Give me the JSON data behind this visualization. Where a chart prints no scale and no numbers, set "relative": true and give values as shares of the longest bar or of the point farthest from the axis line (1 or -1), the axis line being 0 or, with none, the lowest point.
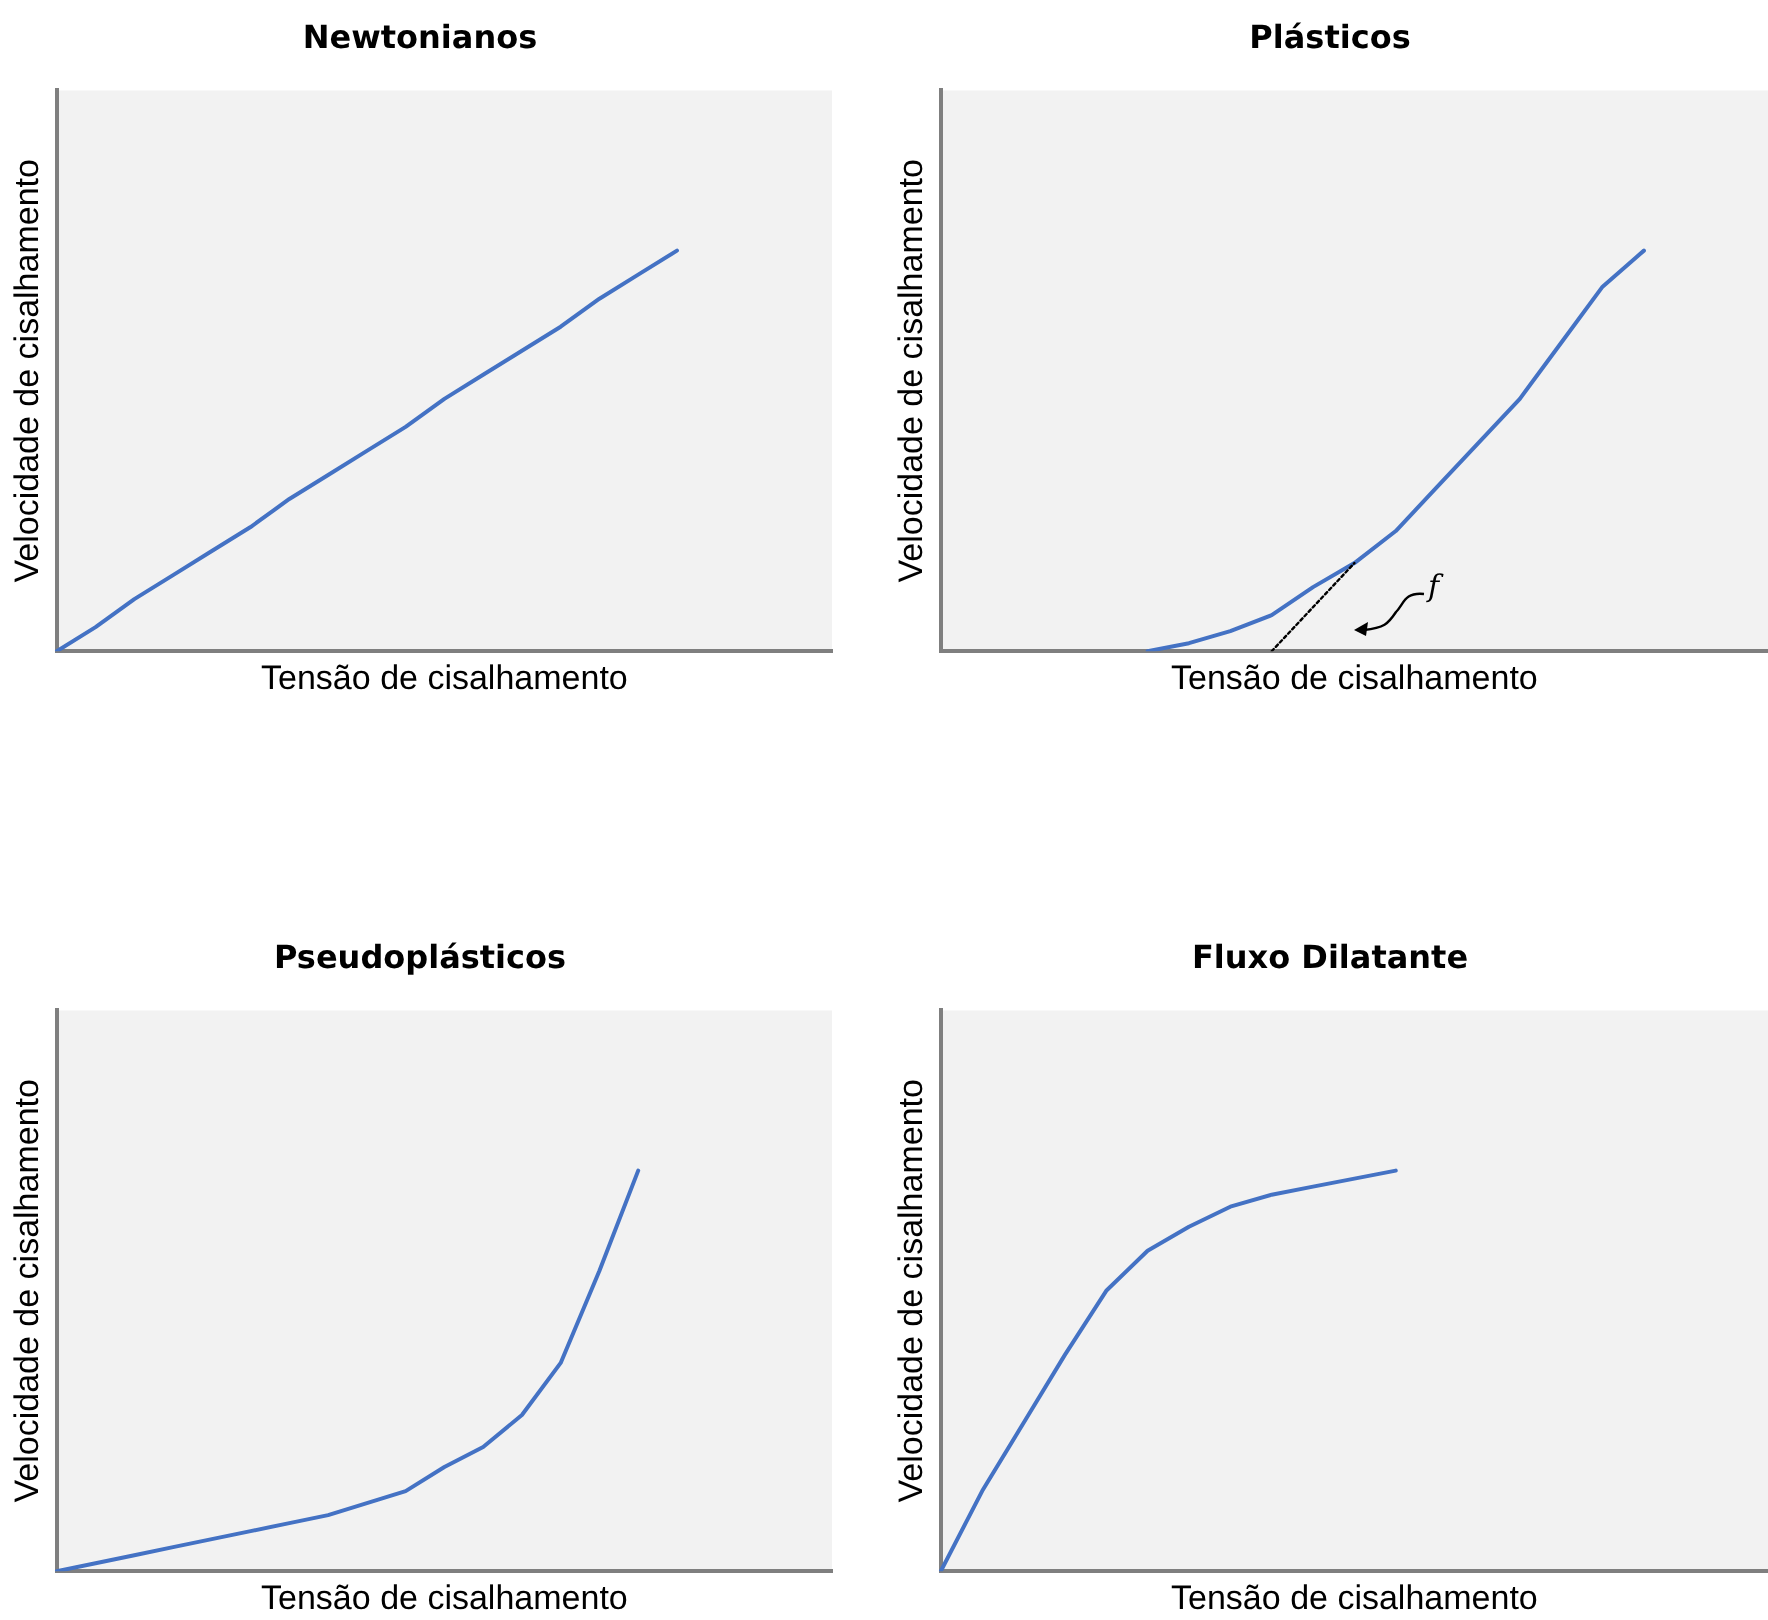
{
  "chart_data": [
    {
      "type": "line",
      "title": "Newtonianos",
      "xlabel": "Tensão de cisalhamento",
      "ylabel": "Velocidade de cisalhamento",
      "relative": true,
      "tick_labels": false,
      "categories": [
        null,
        null,
        null,
        null,
        null,
        null,
        null,
        null,
        null,
        null,
        null,
        null,
        null,
        null,
        null,
        null,
        null,
        null,
        null,
        null,
        null
      ],
      "series": [
        {
          "color": "#4472c4",
          "values": [
            0,
            0.06,
            0.13,
            0.19,
            0.25,
            0.31,
            0.38,
            0.44,
            0.5,
            0.56,
            0.63,
            0.69,
            0.75,
            0.81,
            0.88,
            0.94,
            1,
            null,
            null,
            null,
            null
          ]
        }
      ]
    },
    {
      "type": "line",
      "title": "Plásticos",
      "xlabel": "Tensão de cisalhamento",
      "ylabel": "Velocidade de cisalhamento",
      "relative": true,
      "tick_labels": false,
      "annotations": [
        "f"
      ],
      "categories": [
        null,
        null,
        null,
        null,
        null,
        null,
        null,
        null,
        null,
        null,
        null,
        null,
        null,
        null,
        null,
        null,
        null,
        null,
        null,
        null,
        null
      ],
      "series": [
        {
          "color": "#4472c4",
          "values": [
            null,
            null,
            null,
            null,
            null,
            0,
            0.02,
            0.05,
            0.09,
            0.16,
            0.22,
            0.3,
            0.41,
            0.52,
            0.63,
            0.77,
            0.91,
            1,
            null,
            null,
            null
          ]
        },
        {
          "color": "#000000",
          "line_style": "dotted",
          "values": [
            null,
            null,
            null,
            null,
            null,
            null,
            null,
            null,
            0,
            0.11,
            0.22,
            null,
            null,
            null,
            null,
            null,
            null,
            null,
            null,
            null,
            null
          ]
        }
      ]
    },
    {
      "type": "line",
      "title": "Pseudoplásticos",
      "xlabel": "Tensão de cisalhamento",
      "ylabel": "Velocidade de cisalhamento",
      "relative": true,
      "tick_labels": false,
      "categories": [
        null,
        null,
        null,
        null,
        null,
        null,
        null,
        null,
        null,
        null,
        null,
        null,
        null,
        null,
        null,
        null,
        null,
        null,
        null,
        null,
        null
      ],
      "series": [
        {
          "color": "#4472c4",
          "values": [
            0,
            0.02,
            0.04,
            0.06,
            0.08,
            0.1,
            0.12,
            0.14,
            0.17,
            0.2,
            0.26,
            0.31,
            0.39,
            0.52,
            0.75,
            1,
            null,
            null,
            null,
            null,
            null
          ]
        }
      ]
    },
    {
      "type": "line",
      "title": "Fluxo Dilatante",
      "xlabel": "Tensão de cisalhamento",
      "ylabel": "Velocidade de cisalhamento",
      "relative": true,
      "tick_labels": false,
      "categories": [
        null,
        null,
        null,
        null,
        null,
        null,
        null,
        null,
        null,
        null,
        null,
        null,
        null,
        null,
        null,
        null,
        null,
        null,
        null,
        null,
        null
      ],
      "series": [
        {
          "color": "#4472c4",
          "values": [
            0,
            0.2,
            0.37,
            0.54,
            0.7,
            0.8,
            0.86,
            0.91,
            0.94,
            0.96,
            0.98,
            1,
            null,
            null,
            null,
            null,
            null,
            null,
            null,
            null,
            null
          ]
        }
      ]
    }
  ]
}
